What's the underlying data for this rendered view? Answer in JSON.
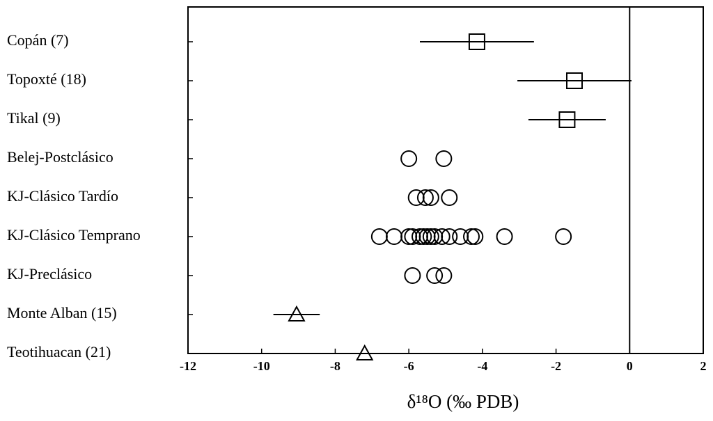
{
  "chart_data": {
    "type": "dotplot",
    "x_label": "δ¹⁸O  (‰ PDB)",
    "xlim": [
      -12,
      2
    ],
    "xticks": [
      -12,
      -10,
      -8,
      -6,
      -4,
      -2,
      0,
      2
    ],
    "reference_x": 0,
    "rows": [
      {
        "label": "Copán  (7)",
        "marker": "square",
        "values": [
          -4.15
        ],
        "errors": [
          1.55
        ]
      },
      {
        "label": "Topoxté  (18)",
        "marker": "square",
        "values": [
          -1.5
        ],
        "errors": [
          1.55
        ]
      },
      {
        "label": "Tikal  (9)",
        "marker": "square",
        "values": [
          -1.7
        ],
        "errors": [
          1.05
        ]
      },
      {
        "label": "Belej-Postclásico",
        "marker": "circle",
        "values": [
          -6.0,
          -5.05
        ]
      },
      {
        "label": "KJ-Clásico Tardío",
        "marker": "circle",
        "values": [
          -5.8,
          -5.55,
          -5.4,
          -4.9
        ]
      },
      {
        "label": "KJ-Clásico Temprano",
        "marker": "circle",
        "values": [
          -6.8,
          -6.4,
          -6.0,
          -5.9,
          -5.7,
          -5.6,
          -5.5,
          -5.4,
          -5.3,
          -5.1,
          -4.9,
          -4.6,
          -4.3,
          -4.2,
          -3.4,
          -1.8
        ]
      },
      {
        "label": "KJ-Preclásico",
        "marker": "circle",
        "values": [
          -5.9,
          -5.3,
          -5.05
        ]
      },
      {
        "label": "Monte Alban  (15)",
        "marker": "triangle",
        "values": [
          -9.05
        ],
        "errors": [
          0.63
        ]
      },
      {
        "label": "Teotihuacan  (21)",
        "marker": "triangle",
        "values": [
          -7.2
        ],
        "errors": [
          0.5
        ]
      }
    ]
  }
}
